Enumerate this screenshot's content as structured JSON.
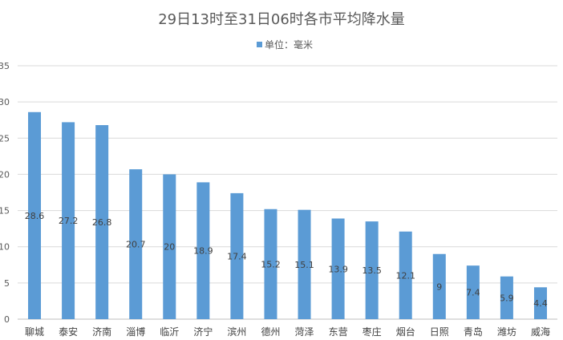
{
  "chart_data": {
    "type": "bar",
    "title": "29日13时至31日06时各市平均降水量",
    "legend": {
      "position": "top",
      "label": "单位：毫米"
    },
    "categories": [
      "聊城",
      "泰安",
      "济南",
      "淄博",
      "临沂",
      "济宁",
      "滨州",
      "德州",
      "菏泽",
      "东营",
      "枣庄",
      "烟台",
      "日照",
      "青岛",
      "潍坊",
      "威海"
    ],
    "series": [
      {
        "name": "单位：毫米",
        "values": [
          28.6,
          27.2,
          26.8,
          20.7,
          20,
          18.9,
          17.4,
          15.2,
          15.1,
          13.9,
          13.5,
          12.1,
          9,
          7.4,
          5.9,
          4.4
        ],
        "labels": [
          "28.6",
          "27.2",
          "26.8",
          "20.7",
          "20",
          "18.9",
          "17.4",
          "15.2",
          "15.1",
          "13.9",
          "13.5",
          "12.1",
          "9",
          "7.4",
          "5.9",
          "4.4"
        ]
      }
    ],
    "ylim": [
      0,
      35
    ],
    "yticks": [
      0,
      5,
      10,
      15,
      20,
      25,
      30,
      35
    ],
    "grid": true,
    "bar_color": "#5b9bd5",
    "xlabel": "",
    "ylabel": ""
  }
}
